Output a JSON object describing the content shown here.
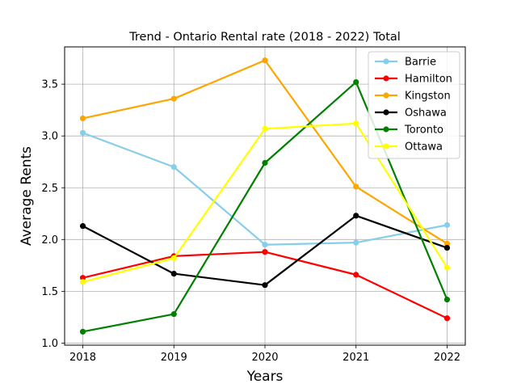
{
  "chart_data": {
    "type": "line",
    "title": "Trend - Ontario Rental rate (2018 - 2022) Total",
    "xlabel": "Years",
    "ylabel": "Average Rents",
    "x": [
      "2018",
      "2019",
      "2020",
      "2021",
      "2022"
    ],
    "xlim": [
      2017.8,
      2022.2
    ],
    "ylim": [
      0.98,
      3.86
    ],
    "yticks": [
      "1.0",
      "1.5",
      "2.0",
      "2.5",
      "3.0",
      "3.5"
    ],
    "grid": true,
    "legend_position": "top-right",
    "series": [
      {
        "name": "Barrie",
        "color": "#87ceeb",
        "values": [
          3.03,
          2.7,
          1.95,
          1.97,
          2.14
        ]
      },
      {
        "name": "Hamilton",
        "color": "#ff0000",
        "values": [
          1.63,
          1.84,
          1.88,
          1.66,
          1.24
        ]
      },
      {
        "name": "Kingston",
        "color": "#ffa500",
        "values": [
          3.17,
          3.36,
          3.73,
          2.51,
          1.96
        ]
      },
      {
        "name": "Oshawa",
        "color": "#000000",
        "values": [
          2.13,
          1.67,
          1.56,
          2.23,
          1.92
        ]
      },
      {
        "name": "Toronto",
        "color": "#008000",
        "values": [
          1.11,
          1.28,
          2.74,
          3.52,
          1.42
        ]
      },
      {
        "name": "Ottawa",
        "color": "#ffff00",
        "values": [
          1.59,
          1.82,
          3.07,
          3.12,
          1.73
        ]
      }
    ]
  }
}
